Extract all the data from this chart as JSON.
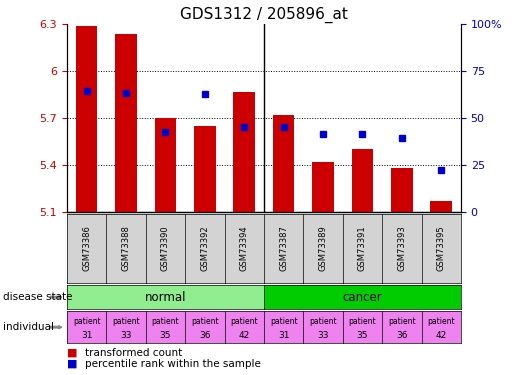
{
  "title": "GDS1312 / 205896_at",
  "samples": [
    "GSM73386",
    "GSM73388",
    "GSM73390",
    "GSM73392",
    "GSM73394",
    "GSM73387",
    "GSM73389",
    "GSM73391",
    "GSM73393",
    "GSM73395"
  ],
  "transformed_count": [
    6.29,
    6.24,
    5.7,
    5.65,
    5.87,
    5.72,
    5.42,
    5.5,
    5.38,
    5.17
  ],
  "percentile_rank": [
    0.645,
    0.635,
    0.425,
    0.63,
    0.455,
    0.455,
    0.415,
    0.415,
    0.395,
    0.225
  ],
  "ymin": 5.1,
  "ymax": 6.3,
  "yticks": [
    5.1,
    5.4,
    5.7,
    6.0,
    6.3
  ],
  "ytick_labels": [
    "5.1",
    "5.4",
    "5.7",
    "6",
    "6.3"
  ],
  "right_yticks": [
    0,
    25,
    50,
    75,
    100
  ],
  "right_ytick_labels": [
    "0",
    "25",
    "50",
    "75",
    "100%"
  ],
  "bar_color": "#cc0000",
  "percentile_color": "#0000cc",
  "normal_color": "#90ee90",
  "cancer_color": "#00cc00",
  "individual_color": "#ee82ee",
  "sample_box_color": "#d3d3d3",
  "individual_patients": [
    "31",
    "33",
    "35",
    "36",
    "42",
    "31",
    "33",
    "35",
    "36",
    "42"
  ],
  "legend_transformed": "transformed count",
  "legend_percentile": "percentile rank within the sample",
  "disease_label": "disease state",
  "individual_label": "individual",
  "bar_width": 0.55,
  "title_fontsize": 11,
  "tick_fontsize": 8
}
